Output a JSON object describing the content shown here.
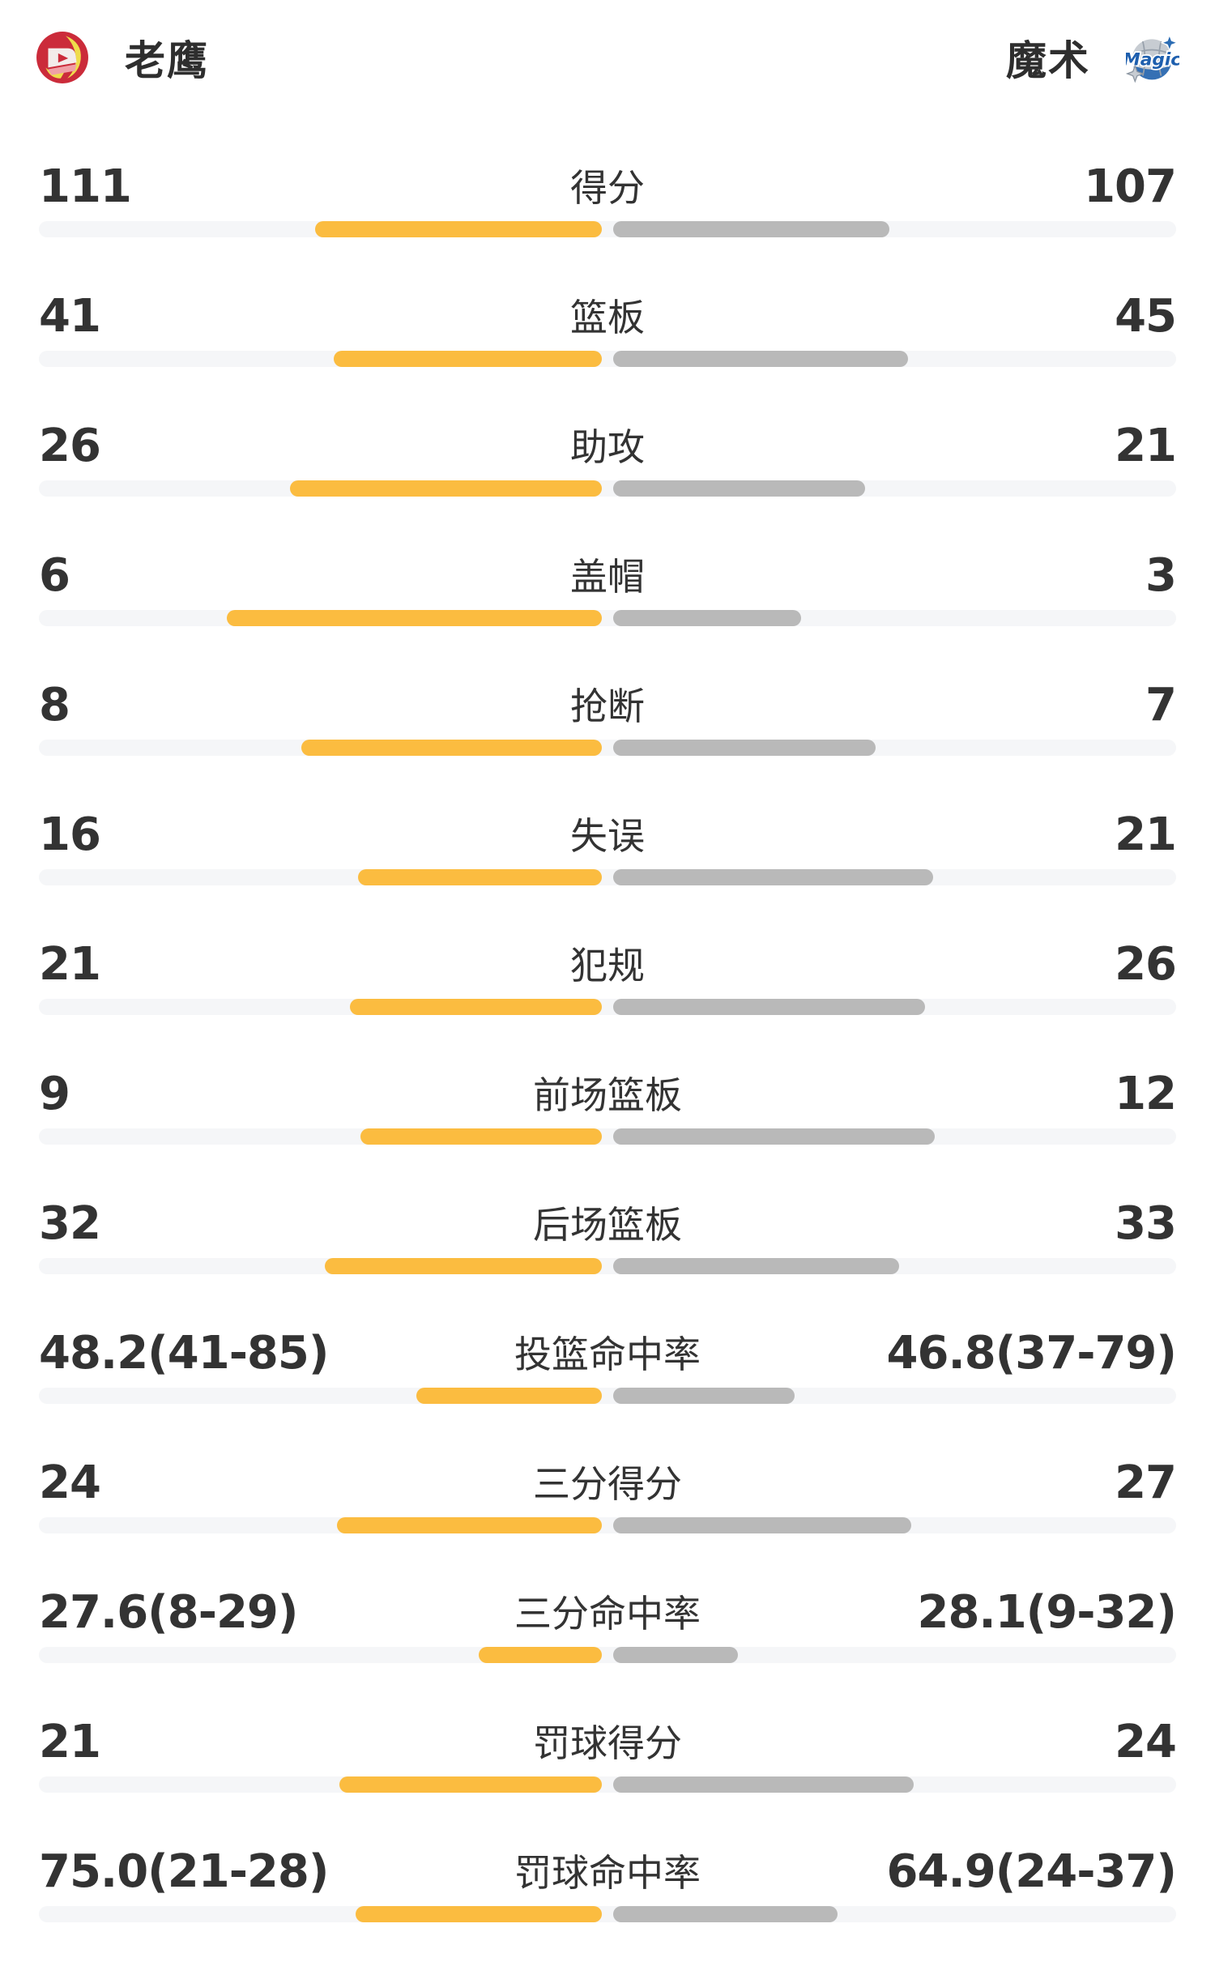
{
  "header": {
    "home": {
      "name": "老鹰",
      "logo_icon": "hawks-logo"
    },
    "away": {
      "name": "魔术",
      "logo_icon": "magic-logo"
    }
  },
  "chart_data": {
    "type": "bar",
    "orientation": "horizontal-diverging",
    "legend_position": "top",
    "grid": false,
    "teams": [
      {
        "name": "老鹰",
        "color": "#FBBC40"
      },
      {
        "name": "魔术",
        "color": "#B9B9B9"
      }
    ],
    "categories": [
      "得分",
      "篮板",
      "助攻",
      "盖帽",
      "抢断",
      "失误",
      "犯规",
      "前场篮板",
      "后场篮板",
      "投篮命中率",
      "三分得分",
      "三分命中率",
      "罚球得分",
      "罚球命中率"
    ],
    "series": [
      {
        "name": "老鹰",
        "values": [
          111,
          41,
          26,
          6,
          8,
          16,
          21,
          9,
          32,
          48.2,
          24,
          27.6,
          21,
          75.0
        ]
      },
      {
        "name": "魔术",
        "values": [
          107,
          45,
          21,
          3,
          7,
          21,
          26,
          12,
          33,
          46.8,
          27,
          28.1,
          24,
          64.9
        ]
      }
    ],
    "rows": [
      {
        "label": "得分",
        "home": "111",
        "away": "107",
        "home_bar": 354,
        "away_bar": 341
      },
      {
        "label": "篮板",
        "home": "41",
        "away": "45",
        "home_bar": 331,
        "away_bar": 364
      },
      {
        "label": "助攻",
        "home": "26",
        "away": "21",
        "home_bar": 385,
        "away_bar": 311
      },
      {
        "label": "盖帽",
        "home": "6",
        "away": "3",
        "home_bar": 463,
        "away_bar": 232
      },
      {
        "label": "抢断",
        "home": "8",
        "away": "7",
        "home_bar": 371,
        "away_bar": 324
      },
      {
        "label": "失误",
        "home": "16",
        "away": "21",
        "home_bar": 301,
        "away_bar": 395
      },
      {
        "label": "犯规",
        "home": "21",
        "away": "26",
        "home_bar": 311,
        "away_bar": 385
      },
      {
        "label": "前场篮板",
        "home": "9",
        "away": "12",
        "home_bar": 298,
        "away_bar": 397
      },
      {
        "label": "后场篮板",
        "home": "32",
        "away": "33",
        "home_bar": 342,
        "away_bar": 353
      },
      {
        "label": "投篮命中率",
        "home": "48.2(41-85)",
        "away": "46.8(37-79)",
        "home_bar": 229,
        "away_bar": 224
      },
      {
        "label": "三分得分",
        "home": "24",
        "away": "27",
        "home_bar": 327,
        "away_bar": 368
      },
      {
        "label": "三分命中率",
        "home": "27.6(8-29)",
        "away": "28.1(9-32)",
        "home_bar": 152,
        "away_bar": 154
      },
      {
        "label": "罚球得分",
        "home": "21",
        "away": "24",
        "home_bar": 324,
        "away_bar": 371
      },
      {
        "label": "罚球命中率",
        "home": "75.0(21-28)",
        "away": "64.9(24-37)",
        "home_bar": 304,
        "away_bar": 277
      }
    ],
    "colors": {
      "home_bar": "#FBBC40",
      "away_bar": "#B9B9B9",
      "bar_track": "#F5F6F8",
      "text": "#333333",
      "hawks_red": "#CB2B3A",
      "hawks_yellow": "#EFDC4B",
      "magic_blue": "#2B6CB3",
      "magic_silver": "#C7CCD2"
    }
  }
}
